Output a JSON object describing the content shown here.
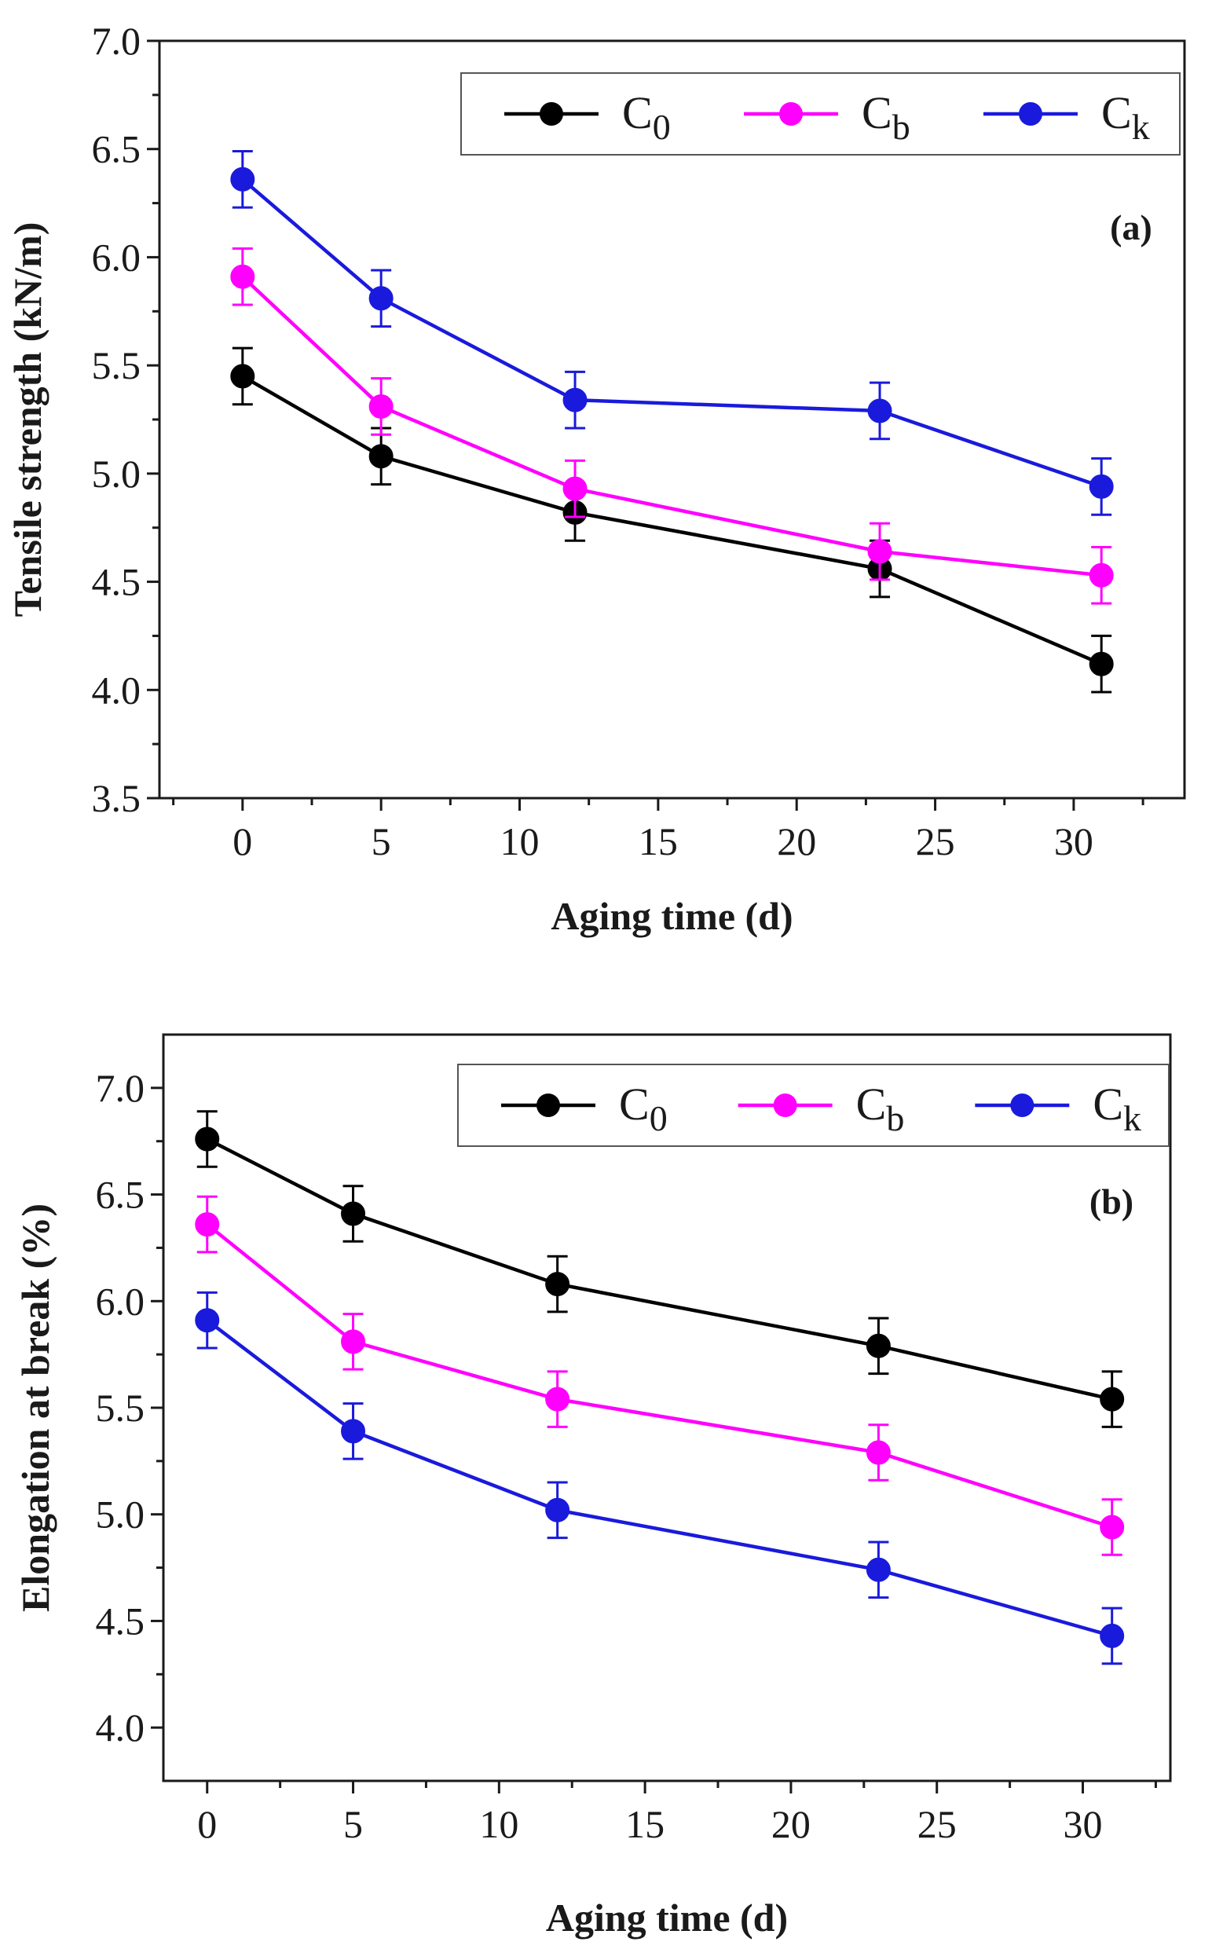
{
  "colors": {
    "C0": "#000000",
    "Cb": "#ff00ff",
    "Ck": "#1a1adc",
    "axis": "#1a1a1a"
  },
  "chart_data": [
    {
      "type": "line",
      "panel_label": "(a)",
      "xlabel": "Aging time (d)",
      "ylabel": "Tensile strength (kN/m)",
      "xlim": [
        -3,
        34
      ],
      "ylim": [
        3.5,
        7.0
      ],
      "x_ticks": [
        0,
        5,
        10,
        15,
        20,
        25,
        30
      ],
      "x_tick_labels": [
        "0",
        "5",
        "10",
        "15",
        "20",
        "25",
        "30"
      ],
      "y_ticks": [
        3.5,
        4.0,
        4.5,
        5.0,
        5.5,
        6.0,
        6.5,
        7.0
      ],
      "y_tick_labels": [
        "3.5",
        "4.0",
        "4.5",
        "5.0",
        "5.5",
        "6.0",
        "6.5",
        "7.0"
      ],
      "legend_position": "top-right",
      "x": [
        0,
        5,
        12,
        23,
        31
      ],
      "series": [
        {
          "key": "C0",
          "name_main": "C",
          "name_sub": "0",
          "values": [
            5.45,
            5.08,
            4.82,
            4.56,
            4.12
          ],
          "error": [
            0.13,
            0.13,
            0.13,
            0.13,
            0.13
          ]
        },
        {
          "key": "Cb",
          "name_main": "C",
          "name_sub": "b",
          "values": [
            5.91,
            5.31,
            4.93,
            4.64,
            4.53
          ],
          "error": [
            0.13,
            0.13,
            0.13,
            0.13,
            0.13
          ]
        },
        {
          "key": "Ck",
          "name_main": "C",
          "name_sub": "k",
          "values": [
            6.36,
            5.81,
            5.34,
            5.29,
            4.94
          ],
          "error": [
            0.13,
            0.13,
            0.13,
            0.13,
            0.13
          ]
        }
      ]
    },
    {
      "type": "line",
      "panel_label": "(b)",
      "xlabel": "Aging time (d)",
      "ylabel": "Elongation at break (%)",
      "xlim": [
        -1.5,
        33
      ],
      "ylim": [
        3.75,
        7.25
      ],
      "x_ticks": [
        0,
        5,
        10,
        15,
        20,
        25,
        30
      ],
      "x_tick_labels": [
        "0",
        "5",
        "10",
        "15",
        "20",
        "25",
        "30"
      ],
      "y_ticks": [
        4.0,
        4.5,
        5.0,
        5.5,
        6.0,
        6.5,
        7.0
      ],
      "y_tick_labels": [
        "4.0",
        "4.5",
        "5.0",
        "5.5",
        "6.0",
        "6.5",
        "7.0"
      ],
      "legend_position": "top-right",
      "x": [
        0,
        5,
        12,
        23,
        31
      ],
      "series": [
        {
          "key": "C0",
          "name_main": "C",
          "name_sub": "0",
          "values": [
            6.76,
            6.41,
            6.08,
            5.79,
            5.54
          ],
          "error": [
            0.13,
            0.13,
            0.13,
            0.13,
            0.13
          ]
        },
        {
          "key": "Cb",
          "name_main": "C",
          "name_sub": "b",
          "values": [
            6.36,
            5.81,
            5.54,
            5.29,
            4.94
          ],
          "error": [
            0.13,
            0.13,
            0.13,
            0.13,
            0.13
          ]
        },
        {
          "key": "Ck",
          "name_main": "C",
          "name_sub": "k",
          "values": [
            5.91,
            5.39,
            5.02,
            4.74,
            4.43
          ],
          "error": [
            0.13,
            0.13,
            0.13,
            0.13,
            0.13
          ]
        }
      ]
    }
  ]
}
